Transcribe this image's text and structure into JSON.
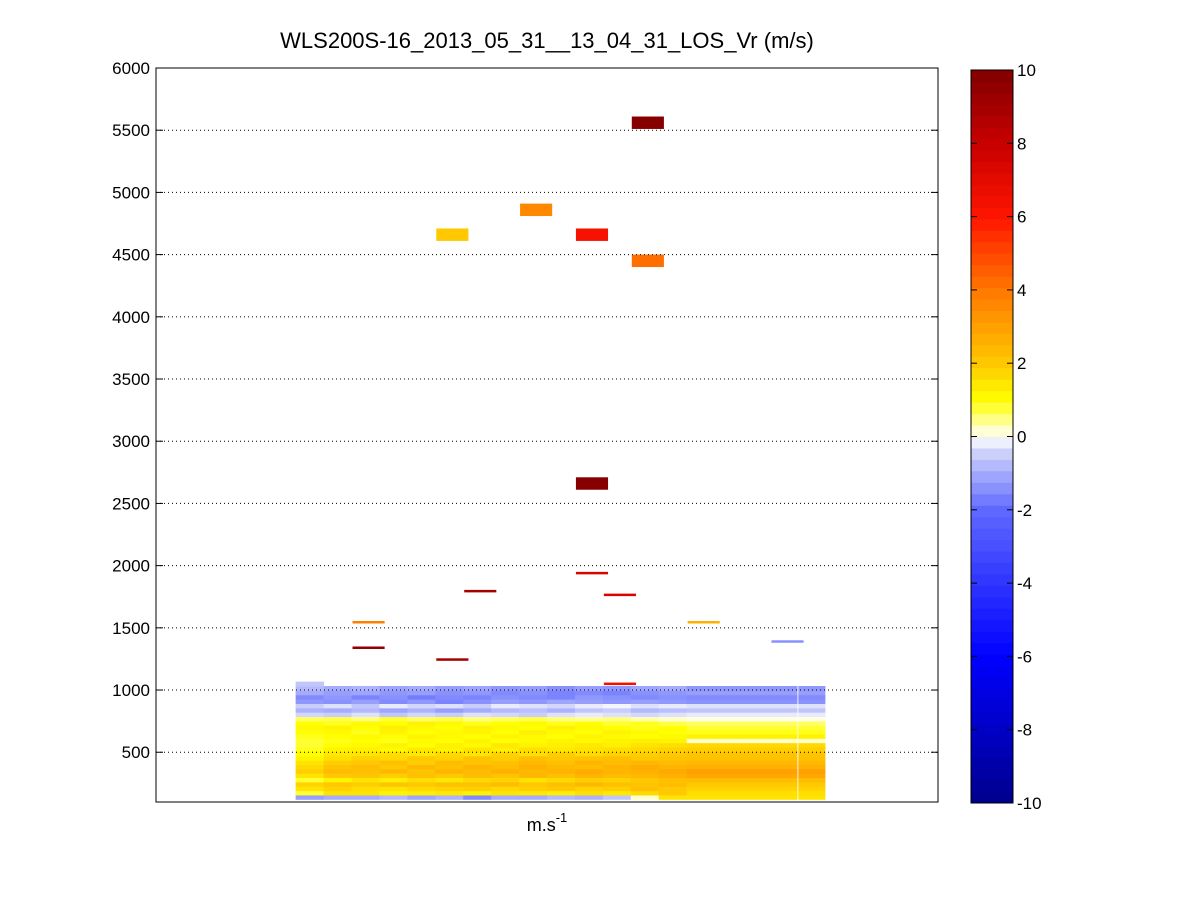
{
  "chart_data": {
    "type": "heatmap",
    "title": "WLS200S-16_2013_05_31__13_04_31_LOS_Vr (m/s)",
    "xlabel": {
      "base": "m.s",
      "exponent": "-1"
    },
    "ylabel": "",
    "ylim": [
      100,
      6000
    ],
    "yticks": [
      500,
      1000,
      1500,
      2000,
      2500,
      3000,
      3500,
      4000,
      4500,
      5000,
      5500,
      6000
    ],
    "grid": "y-dotted",
    "colorbar": {
      "range": [
        -10,
        10
      ],
      "ticks": [
        -10,
        -8,
        -6,
        -4,
        -2,
        0,
        2,
        4,
        6,
        8,
        10
      ],
      "levels": 64,
      "colormap": "blue-white-yellow-red"
    },
    "columns": 18,
    "low_altitude_block": {
      "columns_with_data": [
        5,
        6,
        7,
        8,
        9,
        10,
        11,
        12,
        13,
        14,
        15,
        16,
        17,
        18,
        19,
        20,
        21,
        22,
        23
      ],
      "range_gates": [
        {
          "alt": 140,
          "values": [
            -1.2,
            -1.0,
            -1.0,
            -0.8,
            -1.1,
            -0.9,
            -1.5,
            -1.0,
            -1.0,
            -0.8,
            -0.9,
            -0.6,
            0.2,
            1.5,
            1.5,
            1.5,
            1.5,
            1.5,
            1.5
          ]
        },
        {
          "alt": 175,
          "values": [
            0.8,
            1.5,
            1.5,
            1.2,
            1.3,
            1.4,
            1.2,
            1.5,
            1.4,
            1.3,
            1.6,
            1.4,
            1.7,
            2.0,
            1.6,
            1.6,
            1.6,
            1.6,
            1.6
          ]
        },
        {
          "alt": 210,
          "values": [
            1.5,
            1.8,
            1.6,
            1.5,
            1.7,
            1.8,
            1.9,
            1.7,
            1.9,
            2.0,
            1.8,
            1.9,
            2.2,
            2.0,
            1.8,
            1.8,
            1.8,
            1.8,
            1.8
          ]
        },
        {
          "alt": 245,
          "values": [
            1.8,
            2.0,
            1.9,
            2.1,
            2.0,
            2.2,
            2.1,
            2.3,
            2.0,
            2.2,
            2.4,
            2.2,
            2.1,
            2.3,
            2.0,
            2.0,
            2.0,
            2.0,
            2.0
          ]
        },
        {
          "alt": 280,
          "values": [
            0.8,
            1.2,
            1.5,
            1.3,
            1.6,
            1.4,
            1.7,
            1.8,
            1.5,
            1.7,
            1.9,
            1.8,
            2.0,
            2.2,
            2.3,
            2.3,
            2.3,
            2.3,
            2.3
          ]
        },
        {
          "alt": 315,
          "values": [
            1.5,
            2.0,
            2.1,
            1.9,
            2.2,
            2.0,
            2.3,
            2.1,
            2.4,
            2.2,
            2.5,
            2.3,
            2.4,
            2.6,
            2.8,
            2.8,
            2.8,
            2.8,
            2.8
          ]
        },
        {
          "alt": 350,
          "values": [
            1.9,
            2.3,
            2.2,
            2.4,
            2.1,
            2.5,
            2.3,
            2.6,
            2.4,
            2.5,
            2.7,
            2.5,
            2.6,
            2.8,
            3.0,
            3.0,
            3.0,
            3.0,
            3.0
          ]
        },
        {
          "alt": 385,
          "values": [
            1.7,
            2.1,
            2.3,
            2.0,
            2.4,
            2.2,
            2.5,
            2.3,
            2.6,
            2.4,
            2.3,
            2.5,
            2.7,
            2.5,
            2.6,
            2.6,
            2.6,
            2.6,
            2.6
          ]
        },
        {
          "alt": 420,
          "values": [
            1.5,
            1.9,
            2.0,
            2.2,
            1.9,
            2.3,
            2.1,
            2.2,
            2.4,
            2.2,
            2.5,
            2.3,
            2.4,
            2.3,
            2.4,
            2.4,
            2.4,
            2.4,
            2.4
          ]
        },
        {
          "alt": 455,
          "values": [
            1.2,
            1.6,
            1.8,
            1.7,
            2.0,
            1.8,
            2.1,
            1.9,
            2.2,
            2.0,
            2.1,
            2.2,
            2.0,
            2.1,
            2.2,
            2.2,
            2.2,
            2.2,
            2.2
          ]
        },
        {
          "alt": 490,
          "values": [
            1.0,
            1.4,
            1.5,
            1.6,
            1.4,
            1.7,
            1.5,
            1.8,
            1.6,
            1.9,
            1.7,
            1.8,
            1.9,
            2.0,
            2.1,
            2.1,
            2.1,
            2.1,
            2.1
          ]
        },
        {
          "alt": 525,
          "values": [
            0.9,
            1.2,
            1.3,
            1.1,
            1.4,
            1.2,
            1.5,
            1.3,
            1.6,
            1.4,
            1.5,
            1.6,
            1.7,
            1.8,
            1.9,
            1.9,
            1.9,
            1.9,
            1.9
          ]
        },
        {
          "alt": 560,
          "values": [
            0.8,
            1.0,
            1.1,
            1.2,
            1.0,
            1.3,
            1.1,
            1.4,
            1.2,
            1.3,
            1.4,
            1.3,
            1.5,
            1.6,
            1.7,
            1.7,
            1.7,
            1.7,
            1.7
          ]
        },
        {
          "alt": 595,
          "values": [
            0.8,
            0.9,
            1.0,
            0.9,
            1.1,
            1.0,
            1.2,
            1.0,
            1.1,
            1.2,
            1.1,
            1.2,
            1.3,
            1.2,
            0.2,
            0.2,
            0.2,
            0.2,
            0.2
          ]
        },
        {
          "alt": 630,
          "values": [
            0.9,
            1.0,
            1.1,
            1.0,
            1.2,
            1.1,
            1.0,
            1.2,
            1.1,
            1.0,
            1.2,
            1.1,
            1.0,
            1.1,
            1.2,
            1.2,
            1.2,
            1.2,
            1.2
          ]
        },
        {
          "alt": 665,
          "values": [
            1.0,
            1.1,
            0.9,
            1.2,
            1.0,
            1.1,
            1.2,
            1.0,
            1.3,
            1.1,
            1.0,
            1.2,
            1.1,
            1.0,
            0.9,
            0.9,
            0.9,
            0.9,
            0.9
          ]
        },
        {
          "alt": 700,
          "values": [
            1.1,
            1.2,
            1.0,
            1.3,
            1.1,
            1.0,
            1.2,
            1.1,
            1.0,
            1.2,
            1.1,
            1.0,
            0.9,
            1.0,
            0.8,
            0.8,
            0.8,
            0.8,
            0.8
          ]
        },
        {
          "alt": 735,
          "values": [
            1.0,
            0.9,
            1.1,
            1.0,
            1.2,
            1.1,
            0.9,
            1.0,
            1.1,
            0.9,
            1.0,
            0.8,
            0.9,
            0.7,
            0.6,
            0.6,
            0.6,
            0.6,
            0.6
          ]
        },
        {
          "alt": 770,
          "values": [
            0.6,
            0.7,
            0.5,
            0.8,
            0.6,
            0.7,
            0.5,
            0.6,
            0.7,
            0.5,
            0.4,
            0.5,
            0.3,
            0.2,
            0.1,
            0.1,
            0.1,
            0.1,
            0.1
          ]
        },
        {
          "alt": 805,
          "values": [
            -0.4,
            -0.5,
            -0.3,
            -0.6,
            -0.4,
            -0.5,
            -0.3,
            -0.4,
            -0.5,
            -0.3,
            -0.2,
            -0.3,
            -0.4,
            -0.3,
            -0.2,
            -0.2,
            -0.2,
            -0.2,
            -0.2
          ]
        },
        {
          "alt": 840,
          "values": [
            -0.9,
            -1.0,
            -0.8,
            -1.1,
            -0.9,
            -1.2,
            -1.0,
            -0.8,
            -0.7,
            -0.9,
            -0.6,
            -0.5,
            -0.8,
            -0.7,
            -0.6,
            -0.6,
            -0.6,
            -0.6,
            -0.6
          ]
        },
        {
          "alt": 875,
          "values": [
            -0.5,
            -0.3,
            -0.6,
            -0.2,
            -0.4,
            -0.3,
            -0.5,
            -0.2,
            -0.3,
            -0.4,
            -0.2,
            -0.1,
            -0.3,
            -0.2,
            -0.3,
            -0.3,
            -0.3,
            -0.3,
            -0.3
          ]
        },
        {
          "alt": 910,
          "values": [
            -1.3,
            -1.4,
            -1.2,
            -1.5,
            -1.3,
            -1.6,
            -1.4,
            -1.2,
            -1.3,
            -1.1,
            -1.2,
            -1.3,
            -1.2,
            -1.3,
            -1.4,
            -1.4,
            -1.4,
            -1.4,
            -1.4
          ]
        },
        {
          "alt": 945,
          "values": [
            -1.5,
            -1.3,
            -1.6,
            -1.4,
            -1.7,
            -1.5,
            -1.6,
            -1.4,
            -1.5,
            -1.6,
            -1.3,
            -1.4,
            -1.5,
            -1.4,
            -1.5,
            -1.5,
            -1.5,
            -1.5,
            -1.5
          ]
        },
        {
          "alt": 980,
          "values": [
            -1.0,
            -1.2,
            -1.1,
            -1.3,
            -1.2,
            -1.4,
            -1.3,
            -1.5,
            -1.4,
            -1.6,
            -1.5,
            -1.6,
            -1.4,
            -1.3,
            -1.2,
            -1.2,
            -1.2,
            -1.2,
            -1.2
          ]
        },
        {
          "alt": 1015,
          "values": [
            -0.8,
            -1.0,
            -0.9,
            -1.1,
            -1.0,
            -1.2,
            -1.1,
            -1.3,
            -1.2,
            -1.4,
            -1.2,
            -1.3,
            -1.1,
            -1.0,
            -1.3,
            -1.3,
            -1.3,
            -1.3,
            -1.3
          ]
        },
        {
          "alt": 1050,
          "values": [
            -0.6,
            null,
            null,
            null,
            null,
            null,
            null,
            null,
            null,
            null,
            null,
            null,
            null,
            null,
            null,
            null,
            null,
            null,
            null
          ]
        }
      ]
    },
    "isolated_cells": [
      {
        "column": 17,
        "alt_min": 5510,
        "alt_max": 5610,
        "value": 9.8
      },
      {
        "column": 13,
        "alt_min": 4810,
        "alt_max": 4910,
        "value": 3.6
      },
      {
        "column": 10,
        "alt_min": 4610,
        "alt_max": 4710,
        "value": 2.0
      },
      {
        "column": 15,
        "alt_min": 4610,
        "alt_max": 4710,
        "value": 6.3
      },
      {
        "column": 17,
        "alt_min": 4400,
        "alt_max": 4500,
        "value": 4.2
      },
      {
        "column": 15,
        "alt_min": 2610,
        "alt_max": 2710,
        "value": 9.8
      },
      {
        "column": 15,
        "alt_min": 1930,
        "alt_max": 1950,
        "value": 7.5
      },
      {
        "column": 11,
        "alt_min": 1785,
        "alt_max": 1805,
        "value": 9.0
      },
      {
        "column": 16,
        "alt_min": 1755,
        "alt_max": 1775,
        "value": 7.5
      },
      {
        "column": 7,
        "alt_min": 1535,
        "alt_max": 1555,
        "value": 3.8
      },
      {
        "column": 19,
        "alt_min": 1535,
        "alt_max": 1555,
        "value": 2.6
      },
      {
        "column": 22,
        "alt_min": 1380,
        "alt_max": 1400,
        "value": -1.4
      },
      {
        "column": 7,
        "alt_min": 1330,
        "alt_max": 1350,
        "value": 9.5
      },
      {
        "column": 10,
        "alt_min": 1235,
        "alt_max": 1255,
        "value": 9.0
      },
      {
        "column": 16,
        "alt_min": 1040,
        "alt_max": 1060,
        "value": 6.5
      }
    ]
  }
}
